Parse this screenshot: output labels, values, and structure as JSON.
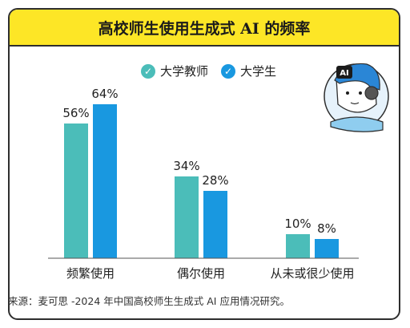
{
  "chart_data": {
    "type": "bar",
    "title": "高校师生使用生成式 AI 的频率",
    "categories": [
      "频繁使用",
      "偶尔使用",
      "从未或很少使用"
    ],
    "series": [
      {
        "name": "大学教师",
        "values": [
          56,
          34,
          10
        ],
        "labels": [
          "56%",
          "34%",
          "10%"
        ],
        "color": "#4bbdb9"
      },
      {
        "name": "大学生",
        "values": [
          64,
          28,
          8
        ],
        "labels": [
          "64%",
          "28%",
          "8%"
        ],
        "color": "#1998e0"
      }
    ],
    "unit": "%",
    "ylim": [
      0,
      64
    ],
    "grid": false,
    "legend": "top",
    "source": "来源：麦可思 -2024 年中国高校师生生成式 AI 应用情况研究。"
  },
  "robot_badge": "AI"
}
